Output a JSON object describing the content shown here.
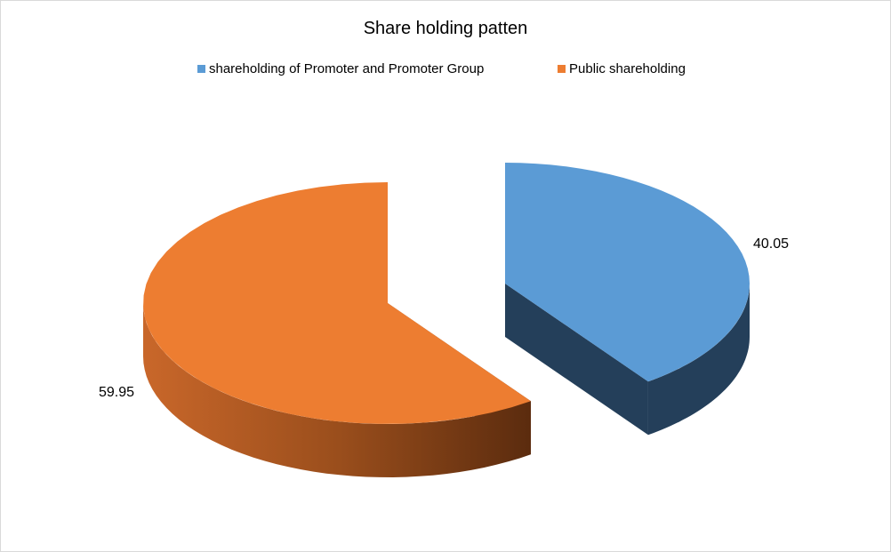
{
  "chart_data": {
    "type": "pie",
    "style": "3d-exploded",
    "title": "Share holding patten",
    "legend_position": "top",
    "categories": [
      "shareholding of Promoter and Promoter Group",
      "Public shareholding"
    ],
    "values": [
      40.05,
      59.95
    ],
    "data_labels": [
      "40.05",
      "59.95"
    ],
    "colors": [
      "#5B9BD5",
      "#ED7D31"
    ],
    "side_colors": [
      "#243F5A",
      "#A3521C"
    ]
  }
}
